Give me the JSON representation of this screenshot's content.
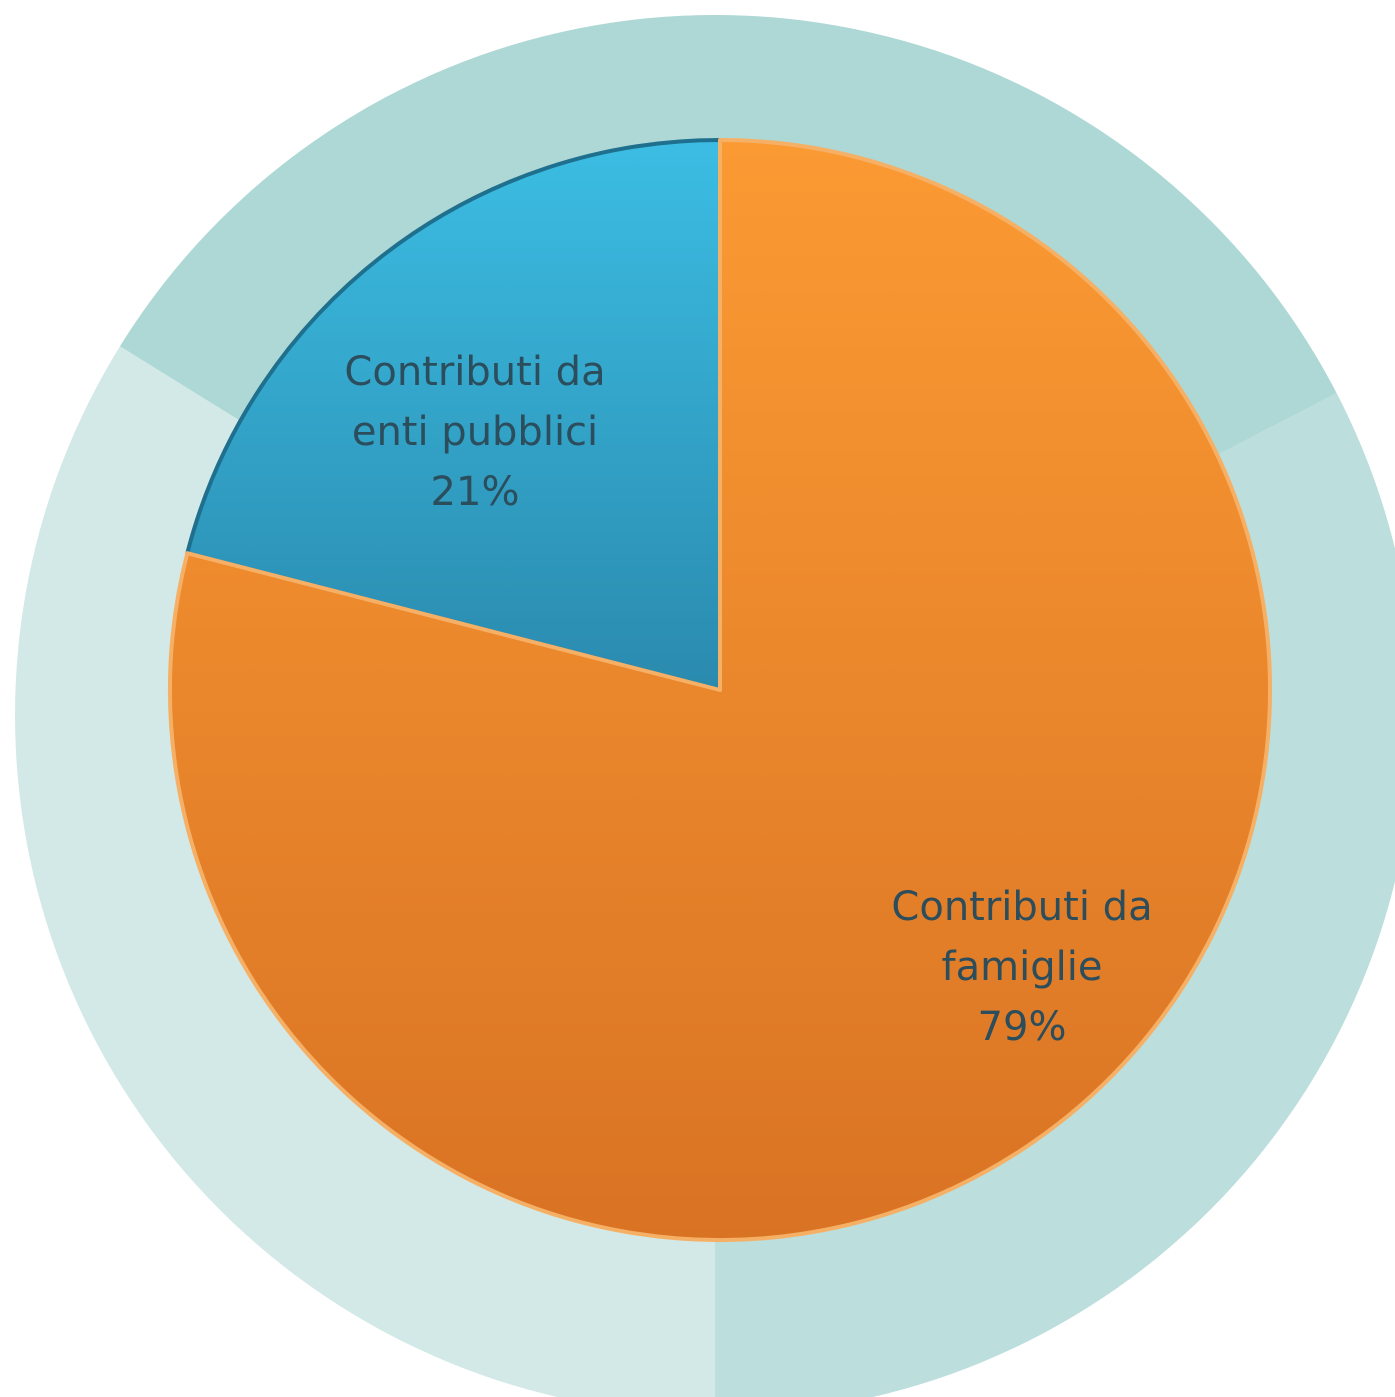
{
  "chart_data": {
    "type": "pie",
    "slices": [
      {
        "label_lines": [
          "Contributi da",
          "enti pubblici"
        ],
        "value_label": "21%",
        "value": 21,
        "color": "#2e9fc6"
      },
      {
        "label_lines": [
          "Contributi da",
          "famiglie"
        ],
        "value_label": "79%",
        "value": 79,
        "color": "#f08b2a"
      }
    ],
    "start": "12 o'clock",
    "direction": "counter-clockwise",
    "background_colors": [
      "#add8d5",
      "#bcdedd",
      "#d3e9e7"
    ]
  }
}
